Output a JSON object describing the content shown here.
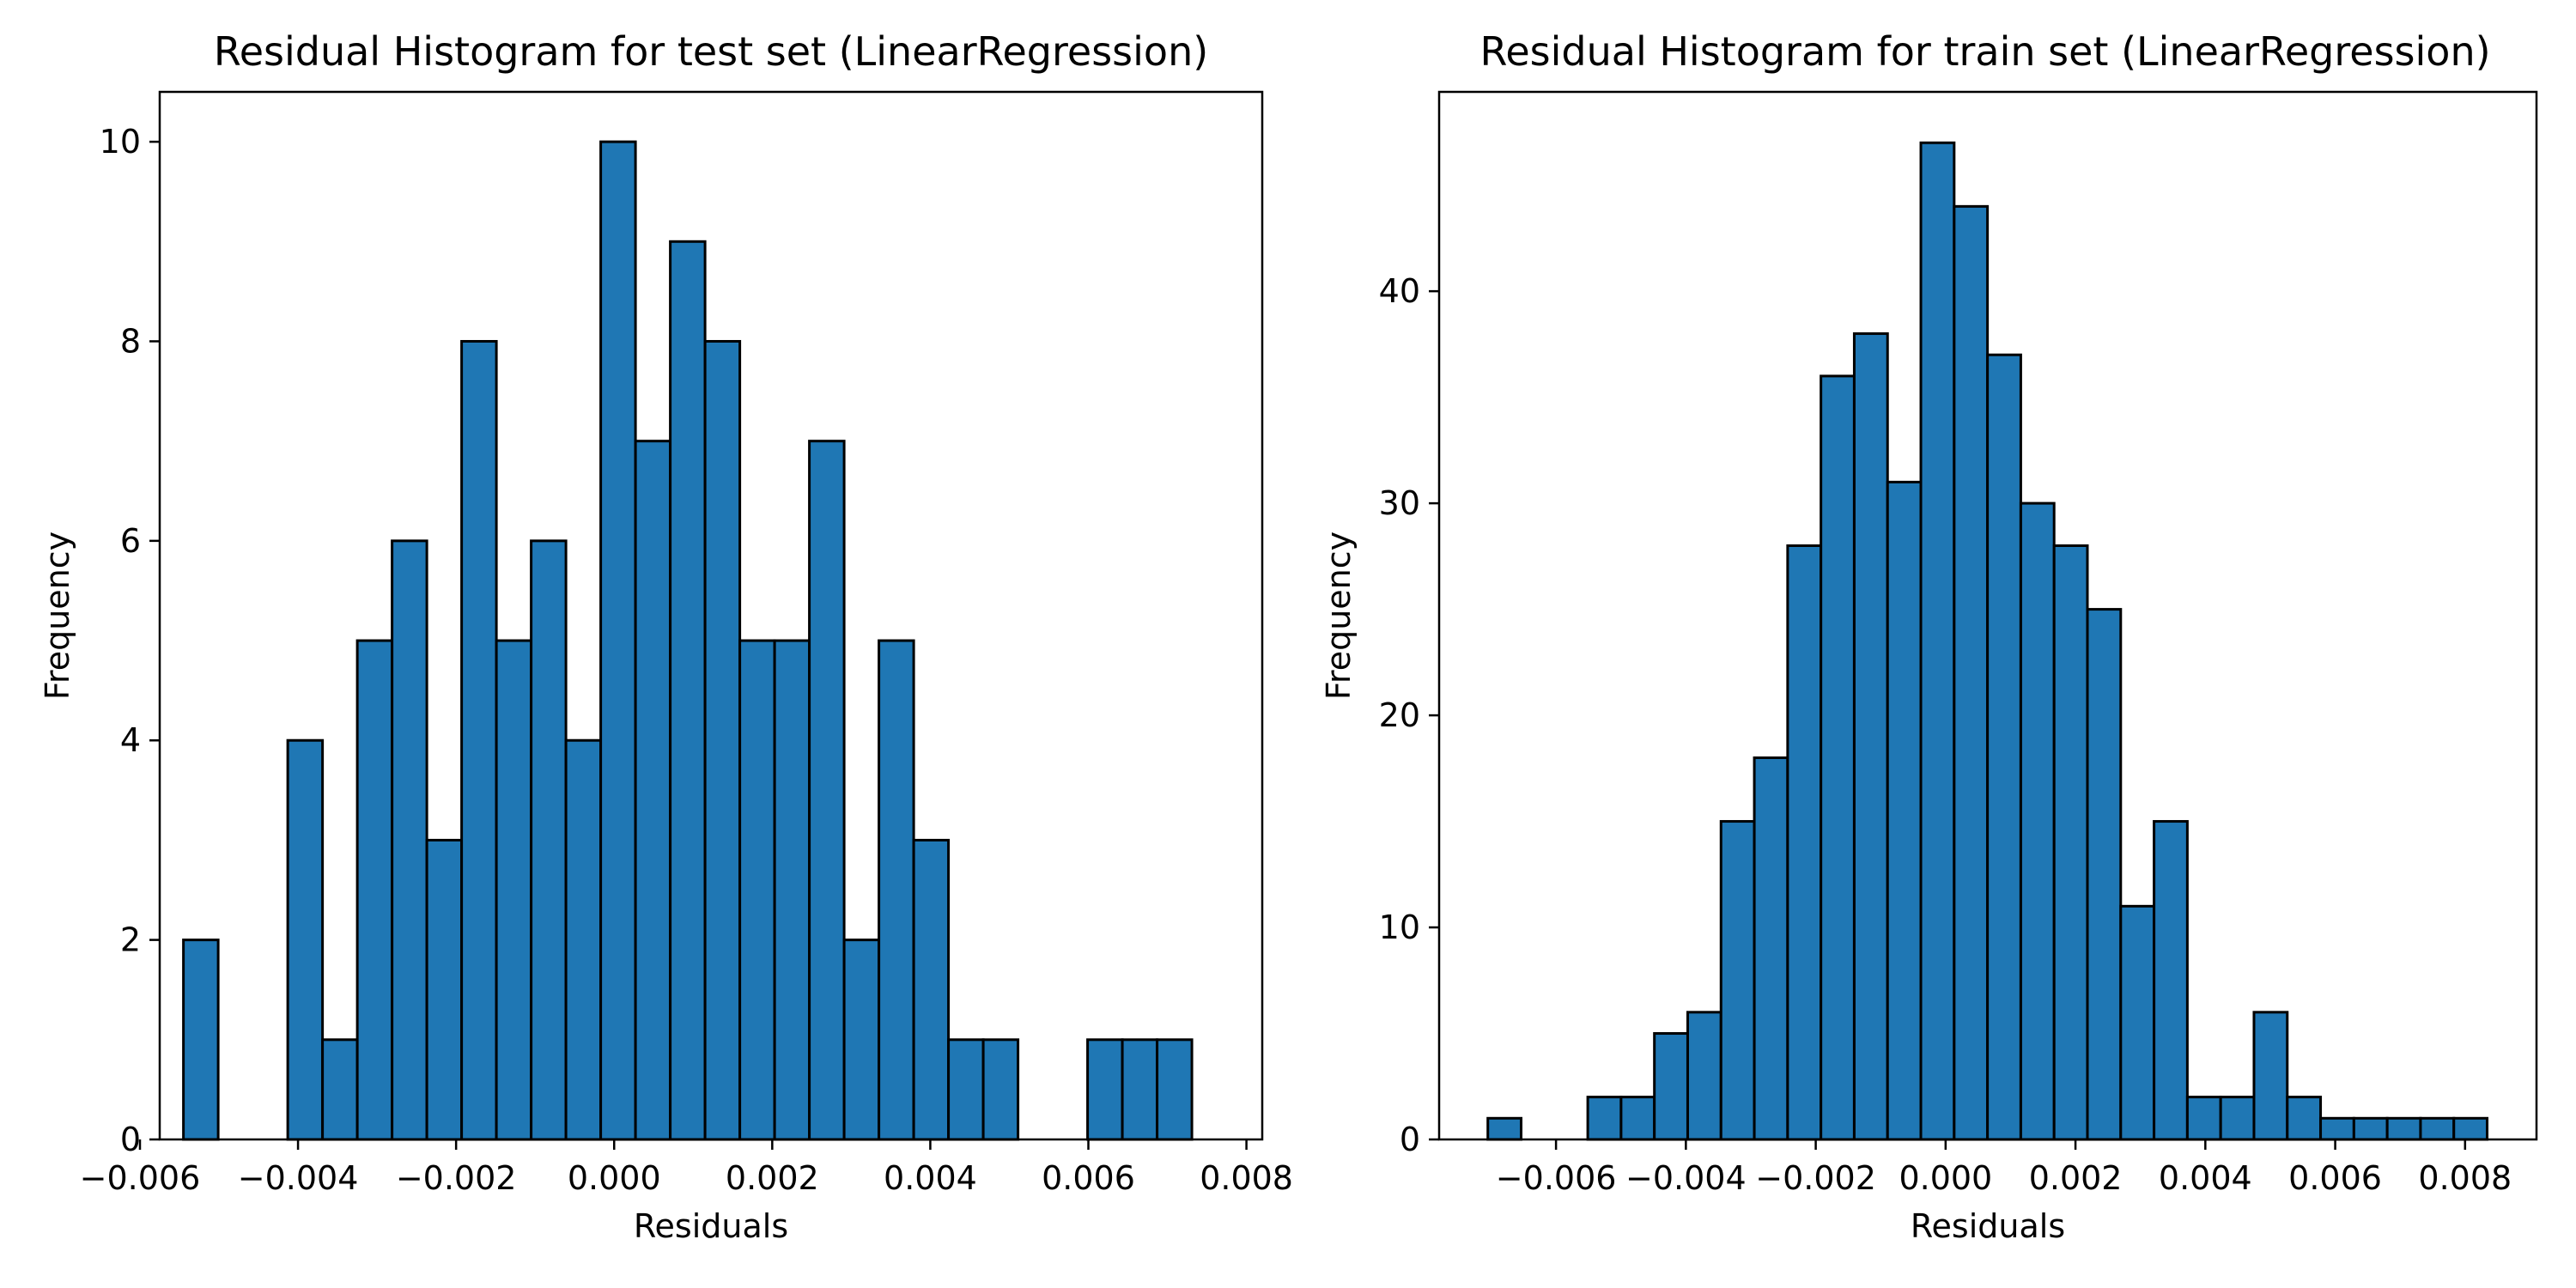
{
  "chart_data": [
    {
      "type": "bar",
      "title": "Residual Histogram for test set (LinearRegression)",
      "xlabel": "Residuals",
      "ylabel": "Frequency",
      "xlim": [
        -0.00575,
        0.0082
      ],
      "ylim": [
        0,
        10.5
      ],
      "xticks": [
        -0.006,
        -0.004,
        -0.002,
        0.0,
        0.002,
        0.004,
        0.006,
        0.008
      ],
      "xtick_labels": [
        "−0.006",
        "−0.004",
        "−0.002",
        "0.000",
        "0.002",
        "0.004",
        "0.006",
        "0.008"
      ],
      "yticks": [
        0,
        2,
        4,
        6,
        8,
        10
      ],
      "ytick_labels": [
        "0",
        "2",
        "4",
        "6",
        "8",
        "10"
      ],
      "bin_start": -0.00545,
      "bin_width": 0.00044,
      "values": [
        2,
        0,
        0,
        4,
        1,
        5,
        6,
        3,
        8,
        5,
        6,
        4,
        10,
        7,
        9,
        8,
        5,
        5,
        7,
        2,
        5,
        3,
        1,
        1,
        0,
        0,
        1,
        1,
        1
      ],
      "bar_color": "#1f77b4",
      "edge_color": "#000000",
      "grid": false
    },
    {
      "type": "bar",
      "title": "Residual Histogram for train set (LinearRegression)",
      "xlabel": "Residuals",
      "ylabel": "Frequency",
      "xlim": [
        -0.0078,
        0.0091
      ],
      "ylim": [
        0,
        49.4
      ],
      "xticks": [
        -0.006,
        -0.004,
        -0.002,
        0.0,
        0.002,
        0.004,
        0.006,
        0.008
      ],
      "xtick_labels": [
        "−0.006",
        "−0.004",
        "−0.002",
        "0.000",
        "0.002",
        "0.004",
        "0.006",
        "0.008"
      ],
      "yticks": [
        0,
        10,
        20,
        30,
        40
      ],
      "ytick_labels": [
        "0",
        "10",
        "20",
        "30",
        "40"
      ],
      "bin_start": -0.00705,
      "bin_width": 0.000513,
      "values": [
        1,
        0,
        0,
        2,
        2,
        5,
        6,
        15,
        18,
        28,
        36,
        38,
        31,
        47,
        44,
        37,
        30,
        28,
        25,
        11,
        15,
        2,
        2,
        6,
        2,
        1,
        1,
        1,
        1,
        1
      ],
      "bar_color": "#1f77b4",
      "edge_color": "#000000",
      "grid": false
    }
  ]
}
